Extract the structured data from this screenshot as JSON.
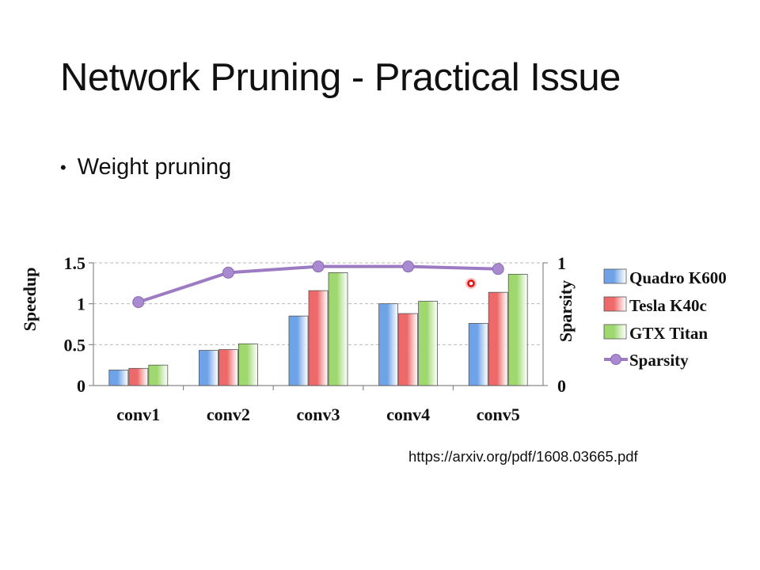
{
  "slide": {
    "title": "Network Pruning - Practical Issue",
    "bullet": "Weight pruning",
    "source": "https://arxiv.org/pdf/1608.03665.pdf"
  },
  "chart_data": {
    "type": "bar",
    "categories": [
      "conv1",
      "conv2",
      "conv3",
      "conv4",
      "conv5"
    ],
    "series": [
      {
        "name": "Quadro K600",
        "values": [
          0.19,
          0.43,
          0.85,
          1.0,
          0.76
        ],
        "color": "#6fa3e8"
      },
      {
        "name": "Tesla K40c",
        "values": [
          0.21,
          0.44,
          1.16,
          0.88,
          1.14
        ],
        "color": "#ee6a6a"
      },
      {
        "name": "GTX Titan",
        "values": [
          0.25,
          0.51,
          1.38,
          1.03,
          1.36
        ],
        "color": "#9ed86f"
      }
    ],
    "line_series": {
      "name": "Sparsity",
      "values": [
        0.68,
        0.92,
        0.97,
        0.97,
        0.95
      ],
      "color": "#9c7bc2",
      "axis": "right"
    },
    "ylabel": "Speedup",
    "y2label": "Sparsity",
    "ylim": [
      0,
      1.5
    ],
    "y2lim": [
      0,
      1
    ],
    "yticks": [
      "0",
      "0.5",
      "1",
      "1.5"
    ],
    "y2ticks": [
      "0",
      "1"
    ],
    "grid": true,
    "legend_position": "right"
  }
}
